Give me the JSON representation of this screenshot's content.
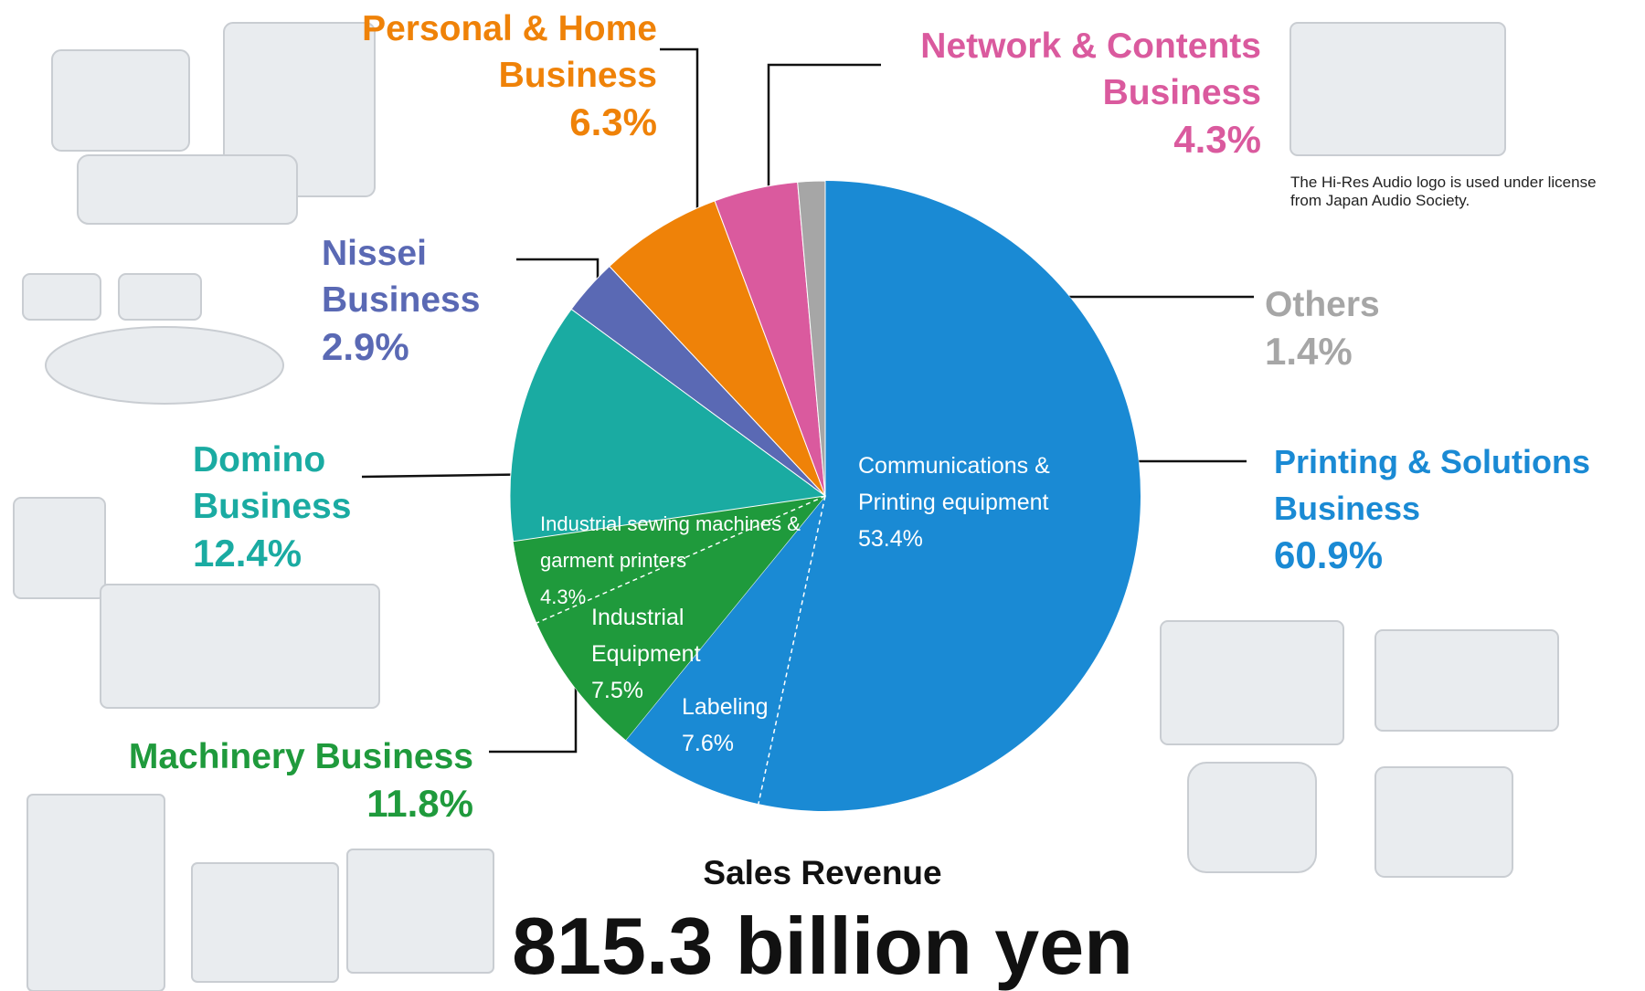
{
  "chart_data": {
    "type": "pie",
    "title": "Sales Revenue",
    "subtitle": "815.3 billion yen",
    "note": "The Hi-Res Audio logo is used under license from Japan Audio Society.",
    "segments": [
      {
        "name": "Printing & Solutions Business",
        "value": 60.9,
        "value_label": "60.9%",
        "color": "#1a8ad4",
        "parts": [
          {
            "name": "Communications & Printing equipment",
            "value": 53.4,
            "value_label": "53.4%"
          },
          {
            "name": "Labeling",
            "value": 7.6,
            "value_label": "7.6%"
          }
        ]
      },
      {
        "name": "Machinery Business",
        "value": 11.8,
        "value_label": "11.8%",
        "color": "#1f9a3c",
        "parts": [
          {
            "name": "Industrial Equipment",
            "value": 7.5,
            "value_label": "7.5%"
          },
          {
            "name": "Industrial sewing machines & garment printers",
            "value": 4.3,
            "value_label": "4.3%"
          }
        ]
      },
      {
        "name": "Domino Business",
        "value": 12.4,
        "value_label": "12.4%",
        "color": "#1aaba2"
      },
      {
        "name": "Nissei Business",
        "value": 2.9,
        "value_label": "2.9%",
        "color": "#5a69b4"
      },
      {
        "name": "Personal & Home Business",
        "value": 6.3,
        "value_label": "6.3%",
        "color": "#ef8208"
      },
      {
        "name": "Network & Contents Business",
        "value": 4.3,
        "value_label": "4.3%",
        "color": "#da5a9e"
      },
      {
        "name": "Others",
        "value": 1.4,
        "value_label": "1.4%",
        "color": "#a6a6a6"
      }
    ]
  }
}
